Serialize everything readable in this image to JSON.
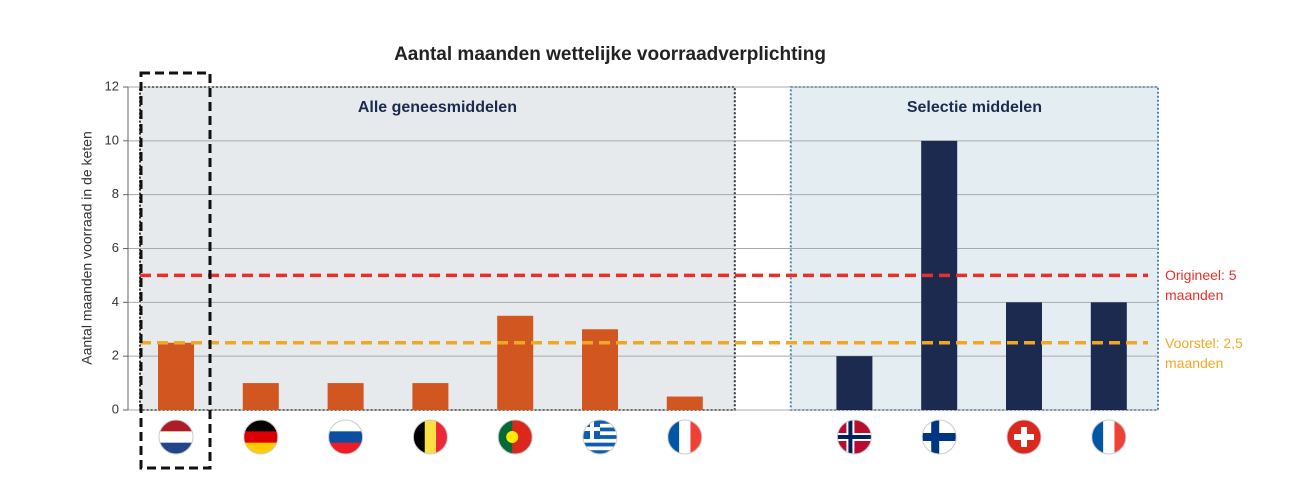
{
  "chart_data": {
    "type": "bar",
    "title": "Aantal maanden wettelijke voorraadverplichting",
    "y_label": "Aantal maanden voorraad in de keten",
    "categories": [
      null,
      null,
      null,
      null,
      null,
      null,
      null,
      null,
      null,
      null,
      null,
      null
    ],
    "series": [
      {
        "name": "Alle geneesmiddelen",
        "color": "#d2561f",
        "values": [
          2.5,
          1,
          1,
          1,
          3.5,
          3,
          0.5,
          null,
          null,
          null,
          null,
          null
        ]
      },
      {
        "name": "Selectie middelen",
        "color": "#1b2a4e",
        "values": [
          null,
          null,
          null,
          null,
          null,
          null,
          null,
          null,
          2,
          10,
          4,
          4
        ]
      }
    ],
    "reference_lines": [
      {
        "label": "Origineel: 5 maanden",
        "value": 5,
        "color": "#e8302a"
      },
      {
        "label": "Voorstel: 2,5 maanden",
        "value": 2.5,
        "color": "#f0a824"
      }
    ],
    "ylim": [
      0,
      12
    ],
    "yticks": [
      0,
      2,
      4,
      6,
      8,
      10,
      12
    ],
    "grid": true
  }
}
